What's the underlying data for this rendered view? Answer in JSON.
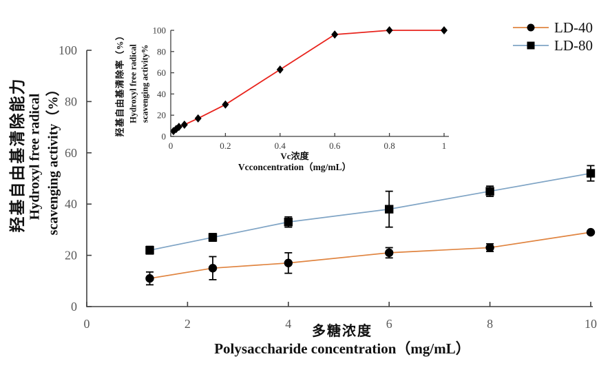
{
  "figure": {
    "background": "#ffffff"
  },
  "colors": {
    "ld40_line": "#E08440",
    "ld80_line": "#7FA4C5",
    "vc_line": "#E8231C",
    "marker": "#000000",
    "axis": "#3F3F3F",
    "tick_label_main": "#595959",
    "tick_label_inset": "#3A3A3A",
    "label_text": "#111111"
  },
  "legend": {
    "items": [
      {
        "label": "LD-40",
        "marker": "circle",
        "color": "#E08440"
      },
      {
        "label": "LD-80",
        "marker": "square",
        "color": "#7FA4C5"
      }
    ]
  },
  "chart_data": [
    {
      "id": "main",
      "type": "line",
      "title": "",
      "xlabel_cn": "多糖浓度",
      "xlabel_en": "Polysaccharide concentration（mg/mL）",
      "ylabel_cn": "羟基自由基清除能力",
      "ylabel_en_line1": "Hydroxyl free radical",
      "ylabel_en_line2": "scavenging activity（%）",
      "xlim": [
        0,
        10
      ],
      "ylim": [
        0,
        100
      ],
      "grid": false,
      "legend_position": "top-right",
      "xticks": [
        0,
        2,
        4,
        6,
        8,
        10
      ],
      "xtick_labels": [
        "0",
        "2",
        "4",
        "6",
        "8",
        "10"
      ],
      "yticks": [
        0,
        20,
        40,
        60,
        80,
        100
      ],
      "ytick_labels": [
        "0",
        "20",
        "40",
        "60",
        "80",
        "100"
      ],
      "x": [
        1.25,
        2.5,
        4,
        6,
        8,
        10
      ],
      "series": [
        {
          "name": "LD-40",
          "marker": "circle",
          "color": "#E08440",
          "values": [
            11,
            15,
            17,
            21,
            23,
            29
          ],
          "errors": [
            2.5,
            4.5,
            4,
            2,
            1.5,
            0
          ]
        },
        {
          "name": "LD-80",
          "marker": "square",
          "color": "#7FA4C5",
          "values": [
            22,
            27,
            33,
            38,
            45,
            52
          ],
          "errors": [
            1.5,
            1.5,
            2,
            7,
            2,
            3
          ]
        }
      ]
    },
    {
      "id": "inset",
      "type": "line",
      "title": "",
      "xlabel_cn": "Vc浓度",
      "xlabel_en": "Vcconcentration（mg/mL）",
      "ylabel_cn": "羟基自由基清除率（%）",
      "ylabel_en_line1": "Hydroxyl free radical",
      "ylabel_en_line2": "scavenging activity%",
      "xlim": [
        0,
        1
      ],
      "ylim": [
        0,
        100
      ],
      "grid": false,
      "xticks": [
        0,
        0.2,
        0.4,
        0.6,
        0.8,
        1
      ],
      "xtick_labels": [
        "0",
        "0.2",
        "0.4",
        "0.6",
        "0.8",
        "1"
      ],
      "yticks": [
        0,
        20,
        40,
        60,
        80,
        100
      ],
      "ytick_labels": [
        "0",
        "20",
        "40",
        "60",
        "80",
        "100"
      ],
      "series": [
        {
          "name": "Vc",
          "marker": "diamond",
          "color": "#E8231C",
          "x": [
            0.01,
            0.02,
            0.03,
            0.05,
            0.1,
            0.2,
            0.4,
            0.6,
            0.8,
            1.0
          ],
          "values": [
            5,
            7,
            9,
            11,
            17,
            30,
            63,
            96,
            100,
            100
          ],
          "errors": []
        }
      ]
    }
  ]
}
